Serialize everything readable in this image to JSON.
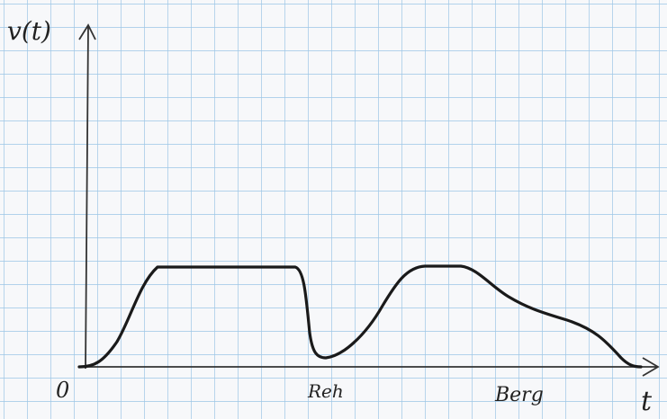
{
  "graph": {
    "y_label": "v(t)",
    "x_label": "t",
    "origin": "0",
    "points": [
      "Reh",
      "Berg"
    ]
  }
}
